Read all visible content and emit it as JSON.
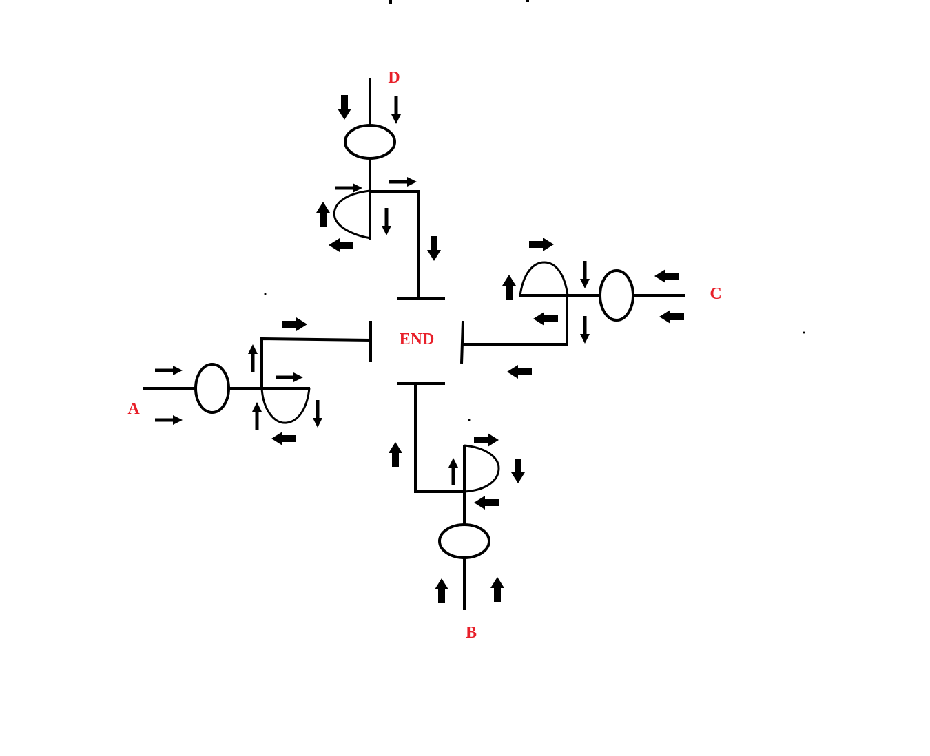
{
  "diagram": {
    "nodes": {
      "end": "END",
      "a": "A",
      "b": "B",
      "c": "C",
      "d": "D"
    },
    "colors": {
      "label": "#e8202a",
      "line": "#000000",
      "background": "#ffffff"
    }
  }
}
